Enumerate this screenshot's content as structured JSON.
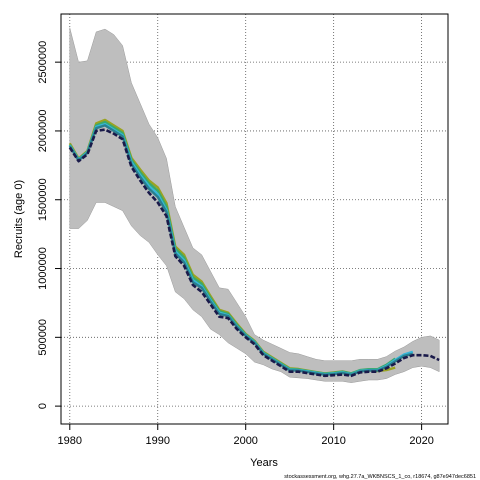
{
  "chart_data": {
    "type": "line",
    "title": "",
    "xlabel": "Years",
    "ylabel": "Recruits (age 0)",
    "xlim": [
      1979,
      2023
    ],
    "ylim": [
      -130000,
      2850000
    ],
    "grid": true,
    "x_ticks": [
      1980,
      1990,
      2000,
      2010,
      2020
    ],
    "y_ticks": [
      0,
      500000,
      1000000,
      1500000,
      2000000,
      2500000
    ],
    "y_tick_labels": [
      "0",
      "500000",
      "1000000",
      "1500000",
      "2000000",
      "2500000"
    ],
    "band_color": "#bebebe",
    "band": {
      "years": [
        1980,
        1981,
        1982,
        1983,
        1984,
        1985,
        1986,
        1987,
        1988,
        1989,
        1990,
        1991,
        1992,
        1993,
        1994,
        1995,
        1996,
        1997,
        1998,
        1999,
        2000,
        2001,
        2002,
        2003,
        2004,
        2005,
        2006,
        2007,
        2008,
        2009,
        2010,
        2011,
        2012,
        2013,
        2014,
        2015,
        2016,
        2017,
        2018,
        2019,
        2020,
        2021,
        2022
      ],
      "upper": [
        2750000,
        2500000,
        2510000,
        2720000,
        2740000,
        2700000,
        2620000,
        2350000,
        2200000,
        2050000,
        1950000,
        1800000,
        1450000,
        1300000,
        1150000,
        1100000,
        980000,
        860000,
        850000,
        750000,
        650000,
        520000,
        480000,
        450000,
        420000,
        390000,
        380000,
        360000,
        340000,
        330000,
        330000,
        330000,
        330000,
        340000,
        340000,
        340000,
        360000,
        400000,
        430000,
        470000,
        500000,
        510000,
        480000
      ],
      "lower": [
        1290000,
        1290000,
        1350000,
        1480000,
        1480000,
        1450000,
        1420000,
        1310000,
        1240000,
        1190000,
        1100000,
        1020000,
        830000,
        780000,
        700000,
        650000,
        560000,
        520000,
        460000,
        420000,
        380000,
        320000,
        300000,
        270000,
        250000,
        210000,
        205000,
        200000,
        190000,
        180000,
        180000,
        180000,
        170000,
        180000,
        190000,
        190000,
        200000,
        230000,
        250000,
        280000,
        290000,
        280000,
        250000
      ]
    },
    "series": [
      {
        "color": "#1a1a4a",
        "dashed": true,
        "x": [
          1980,
          1981,
          1982,
          1983,
          1984,
          1985,
          1986,
          1987,
          1988,
          1989,
          1990,
          1991,
          1992,
          1993,
          1994,
          1995,
          1996,
          1997,
          1998,
          1999,
          2000,
          2001,
          2002,
          2003,
          2004,
          2005,
          2006,
          2007,
          2008,
          2009,
          2010,
          2011,
          2012,
          2013,
          2014,
          2015,
          2016,
          2017,
          2018,
          2019,
          2020,
          2021,
          2022
        ],
        "y": [
          1880000,
          1780000,
          1830000,
          2000000,
          2010000,
          1980000,
          1940000,
          1740000,
          1640000,
          1550000,
          1480000,
          1380000,
          1090000,
          1020000,
          880000,
          830000,
          740000,
          650000,
          640000,
          560000,
          500000,
          450000,
          370000,
          330000,
          290000,
          250000,
          250000,
          240000,
          230000,
          220000,
          225000,
          230000,
          220000,
          245000,
          250000,
          250000,
          275000,
          310000,
          350000,
          370000,
          370000,
          365000,
          335000
        ]
      },
      {
        "color": "#2a7f8e",
        "dashed": false,
        "x": [
          1980,
          1981,
          1982,
          1983,
          1984,
          1985,
          1986,
          1987,
          1988,
          1989,
          1990,
          1991,
          1992,
          1993,
          1994,
          1995,
          1996,
          1997,
          1998,
          1999,
          2000,
          2001,
          2002,
          2003,
          2004,
          2005,
          2006,
          2007,
          2008,
          2009,
          2010,
          2011,
          2012,
          2013,
          2014,
          2015,
          2016,
          2017,
          2018,
          2019
        ],
        "y": [
          1890000,
          1785000,
          1840000,
          2020000,
          2040000,
          2000000,
          1960000,
          1760000,
          1665000,
          1580000,
          1520000,
          1410000,
          1110000,
          1045000,
          900000,
          860000,
          760000,
          670000,
          655000,
          575000,
          510000,
          460000,
          380000,
          340000,
          300000,
          260000,
          258000,
          248000,
          238000,
          228000,
          233000,
          240000,
          228000,
          252000,
          258000,
          258000,
          285000,
          325000,
          365000,
          380000
        ]
      },
      {
        "color": "#35b6d8",
        "dashed": false,
        "x": [
          1980,
          1981,
          1982,
          1983,
          1984,
          1985,
          1986,
          1987,
          1988,
          1989,
          1990,
          1991,
          1992,
          1993,
          1994,
          1995,
          1996,
          1997,
          1998,
          1999,
          2000,
          2001,
          2002,
          2003,
          2004,
          2005,
          2006,
          2007,
          2008,
          2009,
          2010,
          2011,
          2012,
          2013,
          2014,
          2015,
          2016,
          2017,
          2018,
          2019
        ],
        "y": [
          1895000,
          1790000,
          1845000,
          2030000,
          2050000,
          2010000,
          1970000,
          1775000,
          1680000,
          1600000,
          1540000,
          1425000,
          1125000,
          1060000,
          915000,
          870000,
          770000,
          680000,
          660000,
          580000,
          515000,
          465000,
          385000,
          345000,
          305000,
          265000,
          262000,
          252000,
          242000,
          232000,
          237000,
          245000,
          232000,
          256000,
          262000,
          262000,
          292000,
          335000,
          375000,
          395000
        ]
      },
      {
        "color": "#3ba86b",
        "dashed": false,
        "x": [
          1980,
          1981,
          1982,
          1983,
          1984,
          1985,
          1986,
          1987,
          1988,
          1989,
          1990,
          1991,
          1992,
          1993,
          1994,
          1995,
          1996,
          1997,
          1998,
          1999,
          2000,
          2001,
          2002,
          2003,
          2004,
          2005,
          2006,
          2007,
          2008,
          2009,
          2010,
          2011,
          2012,
          2013,
          2014,
          2015,
          2016,
          2017
        ],
        "y": [
          1900000,
          1795000,
          1850000,
          2040000,
          2065000,
          2025000,
          1985000,
          1790000,
          1700000,
          1620000,
          1565000,
          1450000,
          1145000,
          1080000,
          935000,
          890000,
          785000,
          690000,
          670000,
          590000,
          520000,
          470000,
          390000,
          350000,
          310000,
          270000,
          266000,
          256000,
          246000,
          236000,
          242000,
          250000,
          238000,
          262000,
          268000,
          268000,
          300000,
          345000
        ]
      },
      {
        "color": "#9aa321",
        "dashed": false,
        "x": [
          1980,
          1981,
          1982,
          1983,
          1984,
          1985,
          1986,
          1987,
          1988,
          1989,
          1990,
          1991,
          1992,
          1993,
          1994,
          1995,
          1996,
          1997,
          1998,
          1999,
          2000,
          2001,
          2002,
          2003,
          2004,
          2005,
          2006,
          2007,
          2008,
          2009,
          2010,
          2011,
          2012,
          2013,
          2014,
          2015,
          2016,
          2017
        ],
        "y": [
          1910000,
          1800000,
          1855000,
          2055000,
          2080000,
          2040000,
          2000000,
          1805000,
          1720000,
          1640000,
          1590000,
          1475000,
          1160000,
          1100000,
          955000,
          905000,
          800000,
          700000,
          680000,
          600000,
          525000,
          475000,
          395000,
          355000,
          315000,
          275000,
          270000,
          258000,
          248000,
          238000,
          245000,
          252000,
          238000,
          258000,
          260000,
          255000,
          262000,
          280000
        ]
      }
    ],
    "credit": "stockassessment.org, whg.27.7a_WKBNSCS_1_co, r18674, g87e947dec6851"
  }
}
